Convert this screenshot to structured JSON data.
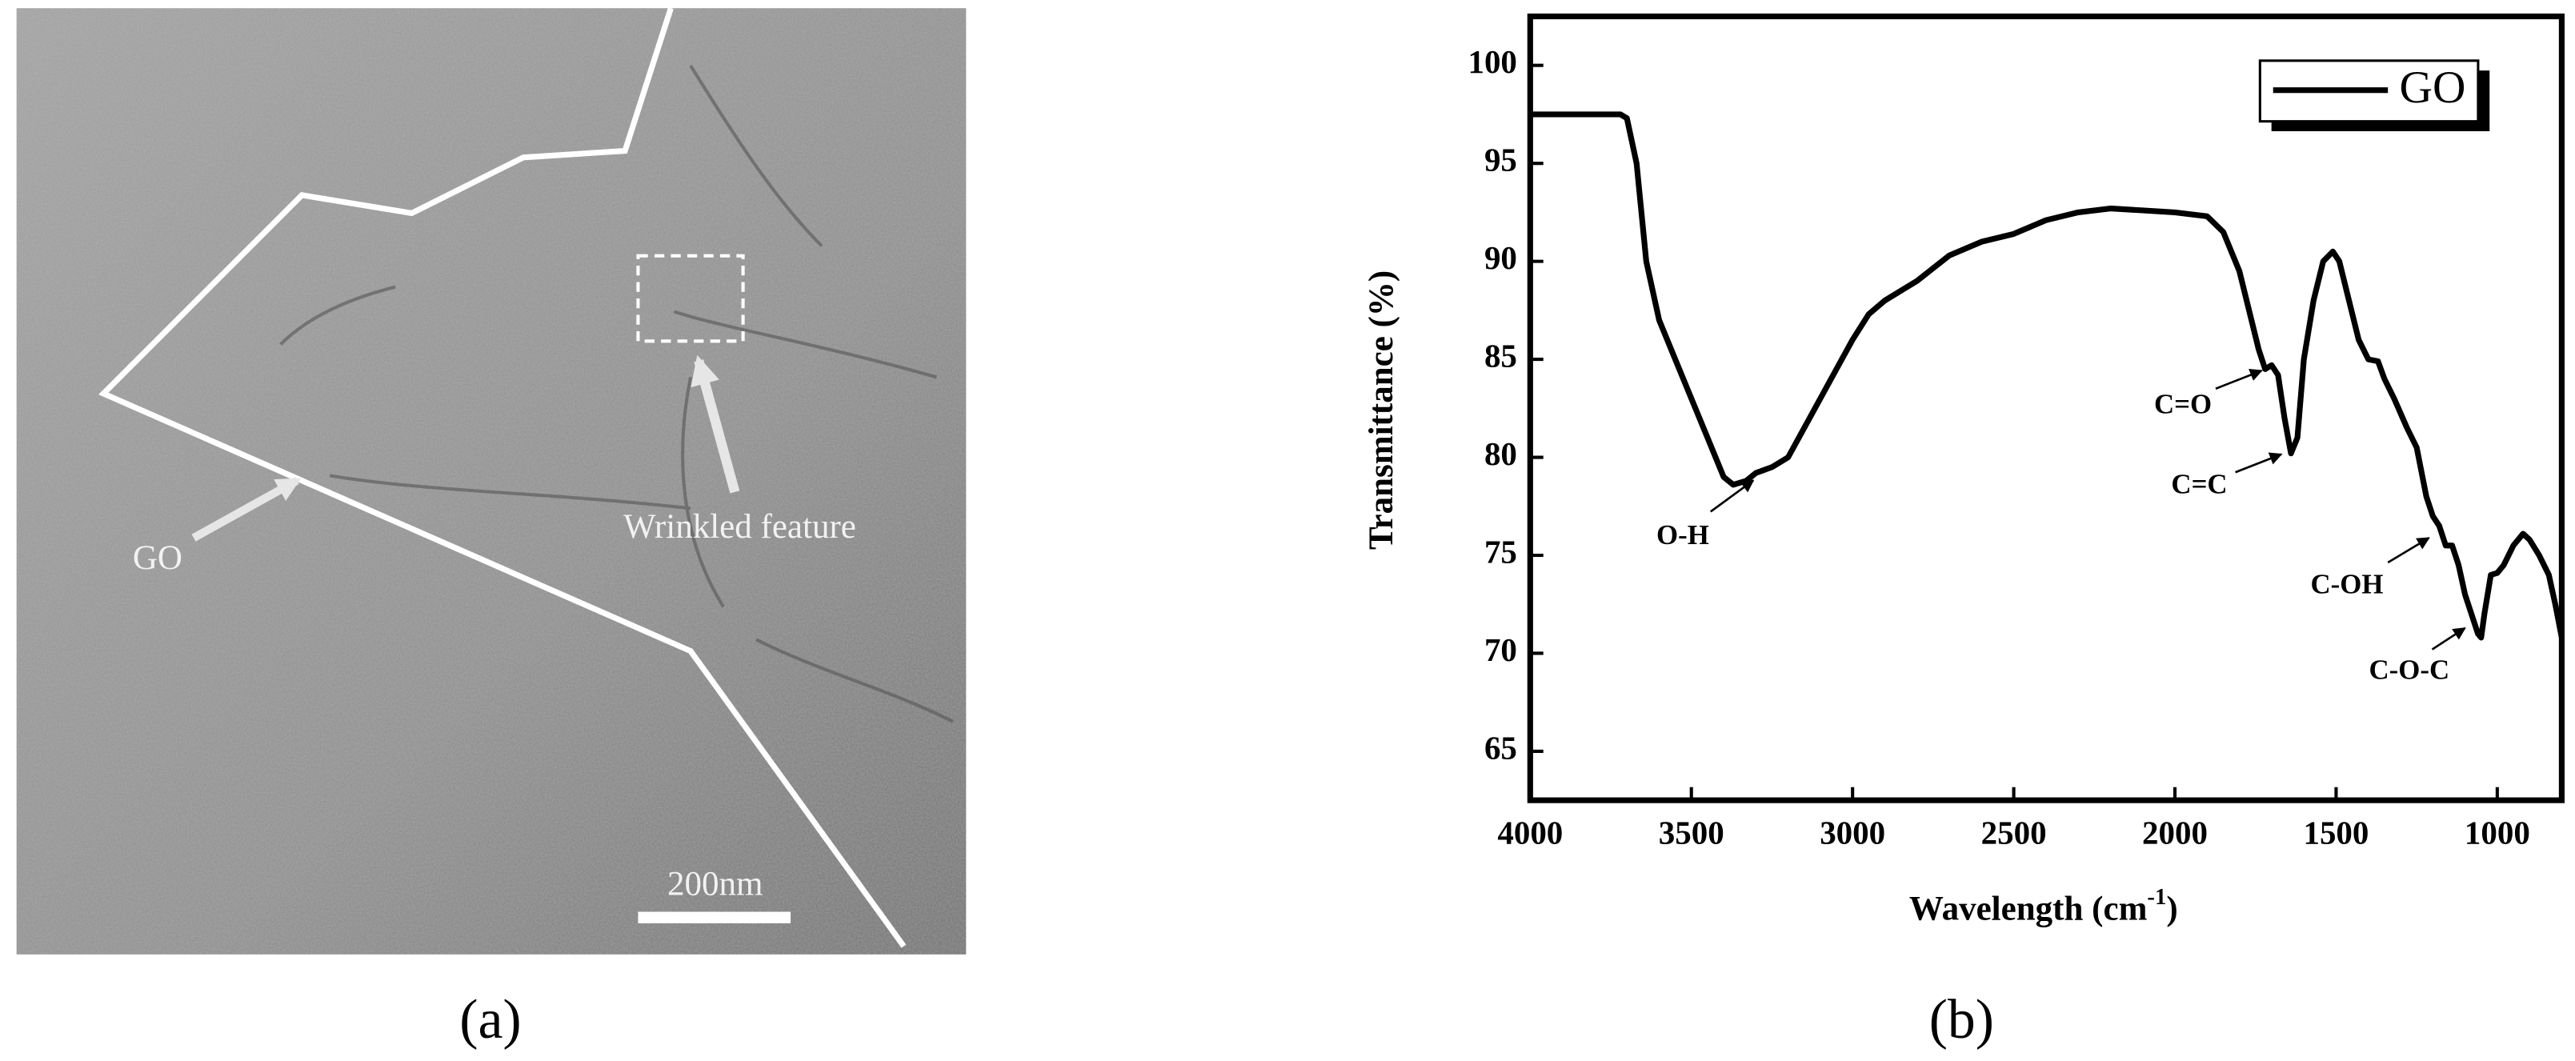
{
  "image_panel": {
    "label": "(a)",
    "annotations": [
      "GO",
      "Wrinkled feature"
    ],
    "scale_bar": "200nm"
  },
  "chart_data": {
    "type": "line",
    "panel_label": "(b)",
    "x_label": [
      "Wavelength (cm",
      "-1",
      ")"
    ],
    "y_label": "Transmittance (%)",
    "xlim": [
      4000,
      800
    ],
    "ylim": [
      62.5,
      102.5
    ],
    "xticks": [
      4000,
      3500,
      3000,
      2500,
      2000,
      1500,
      1000
    ],
    "yticks": [
      65,
      70,
      75,
      80,
      85,
      90,
      95,
      100
    ],
    "legend": "top-right",
    "x": [
      4000,
      3800,
      3720,
      3700,
      3670,
      3640,
      3600,
      3550,
      3500,
      3450,
      3400,
      3370,
      3330,
      3300,
      3250,
      3200,
      3150,
      3100,
      3050,
      3000,
      2950,
      2900,
      2850,
      2800,
      2700,
      2600,
      2500,
      2400,
      2300,
      2200,
      2100,
      2000,
      1900,
      1850,
      1800,
      1770,
      1740,
      1720,
      1700,
      1680,
      1660,
      1640,
      1620,
      1600,
      1570,
      1540,
      1510,
      1490,
      1460,
      1430,
      1400,
      1370,
      1350,
      1320,
      1280,
      1250,
      1220,
      1200,
      1180,
      1160,
      1140,
      1120,
      1100,
      1080,
      1060,
      1050,
      1040,
      1020,
      1000,
      980,
      950,
      920,
      900,
      870,
      840,
      820,
      800
    ],
    "series": [
      {
        "name": "GO",
        "color": "#000000",
        "values": [
          97.5,
          97.5,
          97.5,
          97.3,
          95,
          90,
          87,
          85,
          83,
          81,
          79,
          78.6,
          78.8,
          79.2,
          79.5,
          80,
          81.5,
          83,
          84.5,
          86,
          87.3,
          88,
          88.5,
          89,
          90.3,
          91,
          91.4,
          92.1,
          92.5,
          92.7,
          92.6,
          92.5,
          92.3,
          91.5,
          89.5,
          87.5,
          85.5,
          84.5,
          84.7,
          84.2,
          82,
          80.2,
          81,
          85,
          88,
          90,
          90.5,
          90,
          88,
          86,
          85,
          84.9,
          84,
          83,
          81.5,
          80.5,
          78,
          77,
          76.5,
          75.5,
          75.5,
          74.5,
          73,
          72,
          71,
          70.8,
          72,
          74,
          74.1,
          74.5,
          75.5,
          76.1,
          75.8,
          75,
          74,
          72.5,
          70.8
        ]
      }
    ],
    "annotations": [
      "O-H",
      "C=O",
      "C=C",
      "C-OH",
      "C-O-C"
    ]
  }
}
